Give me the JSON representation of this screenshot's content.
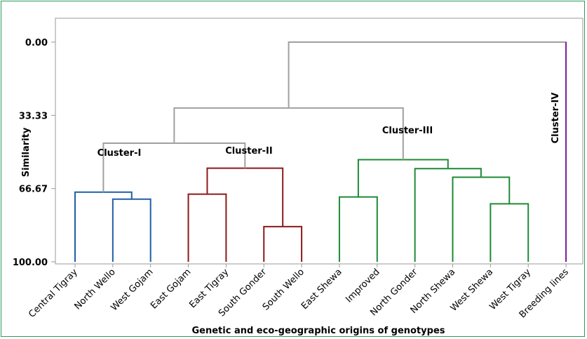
{
  "chart_data": {
    "type": "dendrogram",
    "xlabel": "Genetic and eco-geographic origins of genotypes",
    "ylabel": "Similarity",
    "ylim": [
      0,
      100
    ],
    "y_ticks": [
      "0.00",
      "33.33",
      "66.67",
      "100.00"
    ],
    "y_tick_values": [
      0,
      33.33,
      66.67,
      100
    ],
    "leaves": [
      "Central Tigray",
      "North Wello",
      "West Gojam",
      "East Gojam",
      "East Tigray",
      "South Gonder",
      "South Wello",
      "East Shewa",
      "Improved",
      "North Gonder",
      "North Shewa",
      "West Shewa",
      "West Tigray",
      "Breeding lines"
    ],
    "merges": [
      {
        "a": 1,
        "b": 2,
        "similarity": 71.5,
        "color": "#1f5fa8"
      },
      {
        "a": 0,
        "b": "m0",
        "similarity": 68.3,
        "color": "#1f5fa8"
      },
      {
        "a": 3,
        "b": 4,
        "similarity": 69.2,
        "color": "#8b1a1a"
      },
      {
        "a": 5,
        "b": 6,
        "similarity": 84.0,
        "color": "#8b1a1a"
      },
      {
        "a": "m2",
        "b": "m3",
        "similarity": 57.4,
        "color": "#8b1a1a"
      },
      {
        "a": 7,
        "b": 8,
        "similarity": 70.5,
        "color": "#1e8a36"
      },
      {
        "a": 11,
        "b": 12,
        "similarity": 73.6,
        "color": "#1e8a36"
      },
      {
        "a": 10,
        "b": "m6",
        "similarity": 61.5,
        "color": "#1e8a36"
      },
      {
        "a": 9,
        "b": "m7",
        "similarity": 57.6,
        "color": "#1e8a36"
      },
      {
        "a": "m5",
        "b": "m8",
        "similarity": 53.5,
        "color": "#1e8a36"
      },
      {
        "a": "m1",
        "b": "m4",
        "similarity": 46.0,
        "color": "#a0a0a0"
      },
      {
        "a": "m10",
        "b": "m9",
        "similarity": 30.0,
        "color": "#a0a0a0"
      },
      {
        "a": "m11",
        "b": 13,
        "similarity": 0.0,
        "color": "#a0a0a0"
      }
    ],
    "leaf_colors": {
      "13": "#7b1fa2"
    },
    "cluster_labels": [
      {
        "text": "Cluster-I"
      },
      {
        "text": "Cluster-II"
      },
      {
        "text": "Cluster-III"
      },
      {
        "text": "Cluster-IV"
      }
    ]
  }
}
